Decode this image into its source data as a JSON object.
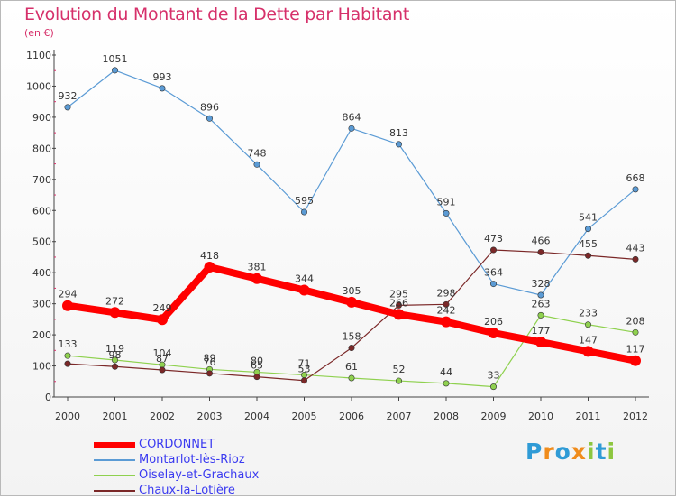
{
  "chart_data": {
    "type": "line",
    "title": "Evolution du Montant de la Dette par Habitant",
    "subtitle": "(en €)",
    "ylim": [
      0,
      1100
    ],
    "yticks": [
      0,
      100,
      200,
      300,
      400,
      500,
      600,
      700,
      800,
      900,
      1000,
      1100
    ],
    "grid": false,
    "legend_position": "bottom-left",
    "x": [
      "2000",
      "2001",
      "2002",
      "2003",
      "2004",
      "2005",
      "2006",
      "2007",
      "2008",
      "2009",
      "2010",
      "2011",
      "2012"
    ],
    "series": [
      {
        "name": "CORDONNET",
        "color": "#ff0000",
        "emphasis": true,
        "values": [
          294,
          272,
          249,
          418,
          381,
          344,
          305,
          266,
          242,
          206,
          177,
          147,
          117
        ],
        "labels": [
          "294",
          "272",
          "249",
          "418",
          "381",
          "344",
          "305",
          "266",
          "242",
          "206",
          "177",
          "147",
          "117"
        ]
      },
      {
        "name": "Montarlot-lès-Rioz",
        "color": "#5b9bd5",
        "emphasis": false,
        "values": [
          932,
          1051,
          993,
          896,
          748,
          595,
          864,
          813,
          591,
          364,
          328,
          541,
          668
        ],
        "labels": [
          "932",
          "1051",
          "993",
          "896",
          "748",
          "595",
          "864",
          "813",
          "591",
          "364",
          "328",
          "541",
          "668"
        ]
      },
      {
        "name": "Oiselay-et-Grachaux",
        "color": "#8fd14f",
        "emphasis": false,
        "values": [
          133,
          119,
          104,
          89,
          80,
          71,
          61,
          52,
          44,
          33,
          263,
          233,
          208
        ],
        "labels": [
          "133",
          "119",
          "104",
          "89",
          "80",
          "71",
          "61",
          "52",
          "44",
          "33",
          "263",
          "233",
          "208"
        ]
      },
      {
        "name": "Chaux-la-Lotière",
        "color": "#7b2828",
        "emphasis": false,
        "values": [
          107,
          98,
          87,
          76,
          65,
          53,
          158,
          295,
          298,
          473,
          466,
          455,
          443
        ],
        "labels": [
          "",
          "98",
          "87",
          "76",
          "65",
          "53",
          "158",
          "295",
          "298",
          "473",
          "466",
          "455",
          "443"
        ]
      }
    ]
  },
  "brand": {
    "letters": [
      "P",
      "r",
      "o",
      "x",
      "i",
      "t",
      "i"
    ],
    "colors": [
      "#2f9bd6",
      "#f08c1c",
      "#2f9bd6",
      "#f08c1c",
      "#8dc63f",
      "#2f9bd6",
      "#8dc63f"
    ]
  }
}
